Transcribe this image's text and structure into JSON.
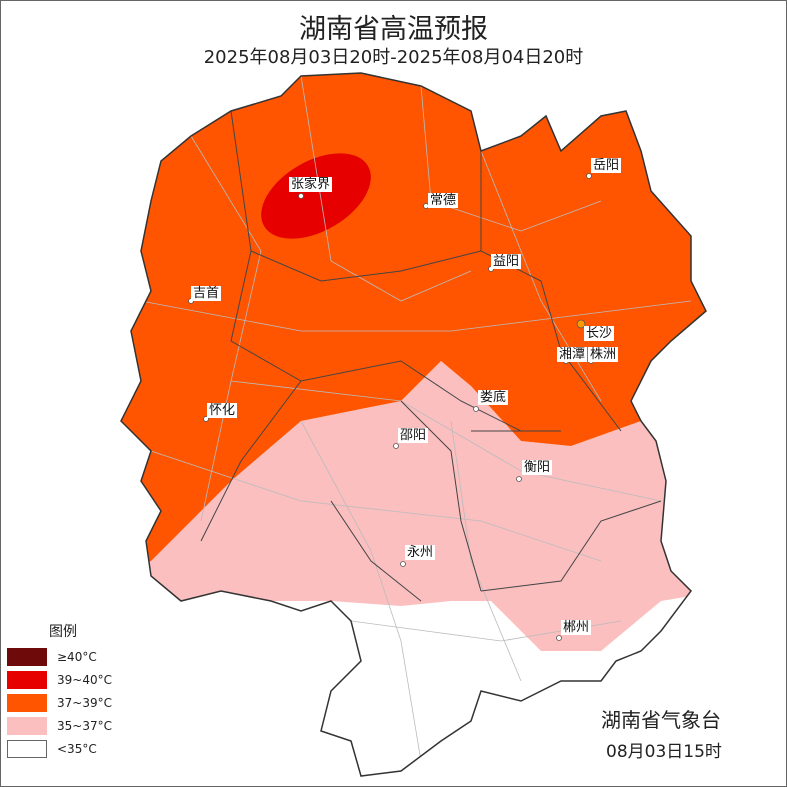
{
  "title": "湖南省高温预报",
  "subtitle": "2025年08月03日20时-2025年08月04日20时",
  "legend": {
    "title": "图例",
    "items": [
      {
        "label": "≥40°C",
        "color": "#6e0a0a"
      },
      {
        "label": "39~40°C",
        "color": "#e60000"
      },
      {
        "label": "37~39°C",
        "color": "#ff5500"
      },
      {
        "label": "35~37°C",
        "color": "#fbbfc0"
      },
      {
        "label": "<35°C",
        "color": "#ffffff"
      }
    ]
  },
  "cities": [
    "张家界",
    "常德",
    "岳阳",
    "益阳",
    "吉首",
    "长沙",
    "湘潭",
    "株洲",
    "怀化",
    "娄底",
    "邵阳",
    "衡阳",
    "永州",
    "郴州"
  ],
  "agency": "湖南省气象台",
  "issued": "08月03日15时"
}
